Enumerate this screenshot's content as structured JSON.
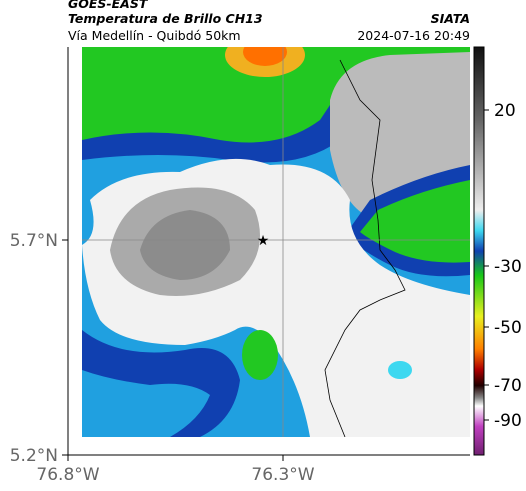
{
  "header": {
    "source": "GOES-EAST",
    "product": "Temperatura de Brillo CH13",
    "agency": "SIATA",
    "region": "Vía Medellín - Quibdó 50km",
    "datetime": "2024-07-16 20:49"
  },
  "axes": {
    "lat_labels": [
      "5.7°N",
      "5.2°N"
    ],
    "lon_labels": [
      "76.8°W",
      "76.3°W"
    ]
  },
  "colorbar": {
    "ticks": [
      20,
      -30,
      -50,
      -70,
      -90
    ]
  }
}
